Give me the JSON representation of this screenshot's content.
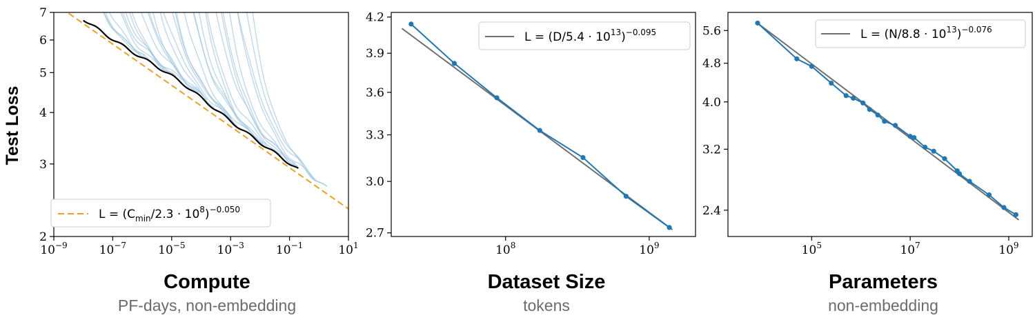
{
  "colors": {
    "run_curves": "#9ec4e0",
    "frontier": "#000000",
    "compute_fit": "#f0a020",
    "data_series": "#1f77b4",
    "fit_line": "#6f6f6f"
  },
  "chart_data": [
    {
      "type": "line",
      "xlabel": "Compute",
      "xsublabel": "PF-days, non-embedding",
      "ylabel": "Test Loss",
      "xscale": "log",
      "yscale": "log",
      "xlim": [
        1e-09,
        10
      ],
      "ylim": [
        2,
        7
      ],
      "x_ticks": [
        {
          "base": "10",
          "exp": "−9",
          "value": 1e-09
        },
        {
          "base": "10",
          "exp": "−7",
          "value": 1e-07
        },
        {
          "base": "10",
          "exp": "−5",
          "value": 1e-05
        },
        {
          "base": "10",
          "exp": "−3",
          "value": 0.001
        },
        {
          "base": "10",
          "exp": "−1",
          "value": 0.1
        },
        {
          "base": "10",
          "exp": "1",
          "value": 10
        }
      ],
      "y_ticks": [
        {
          "label": "2",
          "value": 2
        },
        {
          "label": "3",
          "value": 3
        },
        {
          "label": "4",
          "value": 4
        },
        {
          "label": "5",
          "value": 5
        },
        {
          "label": "6",
          "value": 6
        },
        {
          "label": "7",
          "value": 7
        }
      ],
      "fit": {
        "coef": 230000000.0,
        "exponent": -0.05
      },
      "frontier_range": [
        1e-08,
        0.2
      ],
      "run_curve_count": 32,
      "legend": {
        "position": "lower-left",
        "prefix": "L = (C",
        "sub": "min",
        "mid": "/2.3 · 10",
        "sup1": "8",
        "close": ")",
        "sup2": "−0.050"
      }
    },
    {
      "type": "line",
      "xlabel": "Dataset Size",
      "xsublabel": "tokens",
      "xscale": "log",
      "yscale": "log",
      "xlim": [
        16000000.0,
        2100000000.0
      ],
      "ylim": [
        2.68,
        4.24
      ],
      "x_ticks": [
        {
          "base": "10",
          "exp": "8",
          "value": 100000000.0
        },
        {
          "base": "10",
          "exp": "9",
          "value": 1000000000.0
        }
      ],
      "y_ticks": [
        {
          "label": "2.7",
          "value": 2.7
        },
        {
          "label": "3.0",
          "value": 3.0
        },
        {
          "label": "3.3",
          "value": 3.3
        },
        {
          "label": "3.6",
          "value": 3.6
        },
        {
          "label": "3.9",
          "value": 3.9
        },
        {
          "label": "4.2",
          "value": 4.2
        }
      ],
      "points": [
        [
          22000000.0,
          4.14
        ],
        [
          44000000.0,
          3.82
        ],
        [
          87000000.0,
          3.56
        ],
        [
          173000000.0,
          3.33
        ],
        [
          346000000.0,
          3.15
        ],
        [
          690000000.0,
          2.91
        ],
        [
          1380000000.0,
          2.73
        ]
      ],
      "fit": {
        "coef": 54000000000000.0,
        "exponent": -0.095
      },
      "fit_range": [
        19000000.0,
        1450000000.0
      ],
      "legend": {
        "position": "top-right",
        "prefix": "L = (D/5.4 · 10",
        "sup1": "13",
        "close": ")",
        "sup2": "−0.095"
      }
    },
    {
      "type": "line",
      "xlabel": "Parameters",
      "xsublabel": "non-embedding",
      "xscale": "log",
      "yscale": "log",
      "xlim": [
        2000.0,
        3000000000.0
      ],
      "ylim": [
        2.12,
        6.1
      ],
      "x_ticks": [
        {
          "base": "10",
          "exp": "5",
          "value": 100000.0
        },
        {
          "base": "10",
          "exp": "7",
          "value": 10000000.0
        },
        {
          "base": "10",
          "exp": "9",
          "value": 1000000000.0
        }
      ],
      "y_ticks": [
        {
          "label": "2.4",
          "value": 2.4
        },
        {
          "label": "3.2",
          "value": 3.2
        },
        {
          "label": "4.0",
          "value": 4.0
        },
        {
          "label": "4.8",
          "value": 4.8
        },
        {
          "label": "5.6",
          "value": 5.6
        }
      ],
      "points": [
        [
          8000.0,
          5.8
        ],
        [
          50000.0,
          4.9
        ],
        [
          100000.0,
          4.73
        ],
        [
          250000.0,
          4.37
        ],
        [
          500000.0,
          4.12
        ],
        [
          700000.0,
          4.07
        ],
        [
          1100000.0,
          3.98
        ],
        [
          1500000.0,
          3.86
        ],
        [
          2200000.0,
          3.76
        ],
        [
          3000000.0,
          3.65
        ],
        [
          5000000.0,
          3.58
        ],
        [
          10000000.0,
          3.4
        ],
        [
          12000000.0,
          3.38
        ],
        [
          20000000.0,
          3.23
        ],
        [
          30000000.0,
          3.17
        ],
        [
          50000000.0,
          3.06
        ],
        [
          90000000.0,
          2.89
        ],
        [
          100000000.0,
          2.85
        ],
        [
          160000000.0,
          2.75
        ],
        [
          400000000.0,
          2.58
        ],
        [
          800000000.0,
          2.43
        ],
        [
          1400000000.0,
          2.35
        ]
      ],
      "fit": {
        "coef": 88000000000000.0,
        "exponent": -0.076
      },
      "fit_range": [
        8000.0,
        1600000000.0
      ],
      "legend": {
        "position": "top-right",
        "prefix": "L = (N/8.8 · 10",
        "sup1": "13",
        "close": ")",
        "sup2": "−0.076"
      }
    }
  ]
}
